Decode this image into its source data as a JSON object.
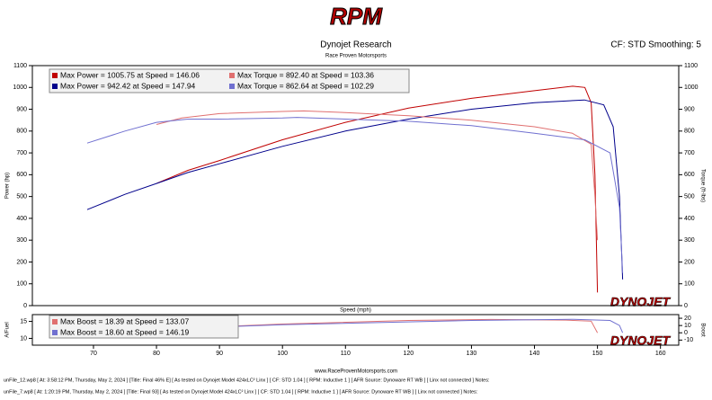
{
  "header": {
    "logo": "RPM",
    "title": "Dynojet Research",
    "subtitle": "Race Proven Motorsports",
    "settings": "CF: STD Smoothing: 5",
    "watermark": "DYNOJET"
  },
  "chart_data": [
    {
      "type": "line",
      "ylabel": "Power (hp)",
      "y2label": "Torque (ft-lbs)",
      "xlim": [
        60.3,
        162.9
      ],
      "ylim": [
        0,
        1100
      ],
      "yticks": [
        0,
        100,
        200,
        300,
        400,
        500,
        600,
        700,
        800,
        900,
        1000,
        1100
      ],
      "y2lim": [
        0,
        1100
      ],
      "y2ticks": [
        0,
        100,
        200,
        300,
        400,
        500,
        600,
        700,
        800,
        900,
        1000,
        1100
      ],
      "series": [
        {
          "name": "Max Power = 1005.75 at Speed = 146.06",
          "color": "#c00000",
          "x": [
            80,
            85,
            90,
            100,
            110,
            120,
            130,
            140,
            146.06,
            148,
            149,
            149.6,
            150
          ],
          "values": [
            560,
            620,
            665,
            760,
            840,
            905,
            950,
            985,
            1005.75,
            1000,
            930,
            600,
            60
          ]
        },
        {
          "name": "Max Power = 942.42 at Speed = 147.94",
          "color": "#00008b",
          "x": [
            69,
            75,
            80,
            85,
            90,
            100,
            110,
            120,
            130,
            140,
            147.94,
            151,
            152.5,
            153.5,
            154
          ],
          "values": [
            440,
            510,
            560,
            610,
            650,
            730,
            800,
            855,
            900,
            930,
            942.42,
            920,
            820,
            500,
            120
          ]
        },
        {
          "name": "Max Torque = 892.40 at Speed = 103.36",
          "color": "#e07070",
          "axis": "y2",
          "x": [
            80,
            84,
            90,
            100,
            103.36,
            110,
            120,
            130,
            140,
            146,
            149,
            149.6,
            150
          ],
          "values": [
            830,
            860,
            880,
            890,
            892.4,
            885,
            870,
            850,
            820,
            790,
            740,
            500,
            300
          ]
        },
        {
          "name": "Max Torque = 862.64 at Speed = 102.29",
          "color": "#7070d0",
          "axis": "y2",
          "x": [
            69,
            75,
            80,
            85,
            90,
            100,
            102.29,
            110,
            120,
            130,
            140,
            148,
            152,
            153.5,
            154
          ],
          "values": [
            745,
            800,
            840,
            855,
            855,
            860,
            862.64,
            855,
            845,
            825,
            790,
            760,
            700,
            450,
            150
          ]
        }
      ]
    },
    {
      "type": "line",
      "xlabel": "Speed (mph)",
      "ylabel": "A/Fuel",
      "y2label": "Boost",
      "xlim": [
        60.3,
        162.9
      ],
      "xticks": [
        70,
        80,
        90,
        100,
        110,
        120,
        130,
        140,
        150,
        160
      ],
      "ylim": [
        8,
        17
      ],
      "yticks": [
        10,
        15
      ],
      "y2lim": [
        -17,
        25
      ],
      "y2ticks": [
        -10,
        0,
        10,
        20
      ],
      "series": [
        {
          "name": "Max Boost = 18.39 at Speed = 133.07",
          "color": "#e07070",
          "axis": "y2",
          "x": [
            80,
            100,
            120,
            133.07,
            145,
            149,
            150
          ],
          "values": [
            5,
            12,
            17,
            18.39,
            17.5,
            16,
            0
          ]
        },
        {
          "name": "Max Boost = 18.60 at Speed = 146.19",
          "color": "#7070d0",
          "axis": "y2",
          "x": [
            69,
            100,
            130,
            146.19,
            152,
            153.5,
            154
          ],
          "values": [
            2,
            11,
            17,
            18.6,
            17,
            10,
            0
          ]
        }
      ]
    }
  ],
  "footer": {
    "website": "www.RaceProvenMotorsports.com",
    "runs": [
      "unFile_12.wp8 [ At: 3:58:12 PM, Thursday, May 2, 2024 ]  [Title: Final 46% E]  [ As tested on Dynojet Model 424xLC² Linx ]  [ CF: STD 1.04 ]  [ RPM: Inductive 1 ]  [ AFR Source: Dynoware RT WB ]  [ Linx not connected ]  Notes:",
      "unFile_7.wp8 [ At: 1:20:19 PM, Thursday, May 2, 2024 ]  [Title: Final 93]  [ As tested on Dynojet Model 424xLC² Linx ]  [ CF: STD 1.04 ]  [ RPM: Inductive 1 ]  [ AFR Source: Dynoware RT WB ]  [ Linx not connected ]  Notes:"
    ]
  }
}
